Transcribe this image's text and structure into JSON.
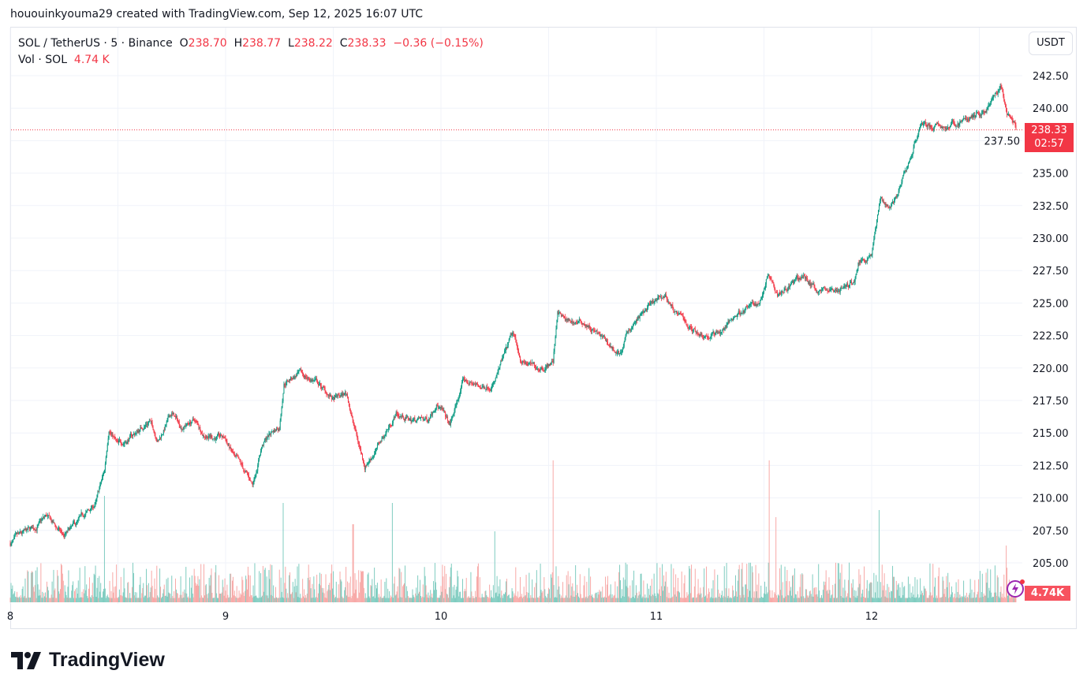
{
  "credit": "hououinkyouma29 created with TradingView.com, Sep 12, 2025 16:07 UTC",
  "legend": {
    "symbol": "SOL / TetherUS · 5 · Binance",
    "o_label": "O",
    "o": "238.70",
    "h_label": "H",
    "h": "238.77",
    "l_label": "L",
    "l": "238.22",
    "c_label": "C",
    "c": "238.33",
    "change": "−0.36 (−0.15%)",
    "vol_label": "Vol · SOL",
    "vol": "4.74 K"
  },
  "currency_button": "USDT",
  "last_price_label": "238.33",
  "countdown": "02:57",
  "volume_label": "4.74K",
  "brand": "TradingView",
  "colors": {
    "up": "#089981",
    "down": "#f23645",
    "vol_up": "#7fccc0",
    "vol_down": "#f7a9a7",
    "grid": "#f0f3fa"
  },
  "chart_data": {
    "type": "candlestick",
    "interval": "5 minutes",
    "ylim": [
      204,
      244
    ],
    "y_ticks": [
      "205.00",
      "207.50",
      "210.00",
      "212.50",
      "215.00",
      "217.50",
      "220.00",
      "222.50",
      "225.00",
      "227.50",
      "230.00",
      "232.50",
      "235.00",
      "237.50",
      "240.00",
      "242.50"
    ],
    "x_ticks": [
      "8",
      "9",
      "10",
      "11",
      "12"
    ],
    "grid": true,
    "last_price": 238.33,
    "approx_path": [
      [
        "09-08 00:00",
        206.5
      ],
      [
        "09-08 02:30",
        207.5
      ],
      [
        "09-08 04:00",
        208.5
      ],
      [
        "09-08 06:00",
        207.0
      ],
      [
        "09-08 07:30",
        208.0
      ],
      [
        "09-08 09:30",
        209.5
      ],
      [
        "09-08 10:30",
        212.0
      ],
      [
        "09-08 11:00",
        215.5
      ],
      [
        "09-08 12:00",
        214.0
      ],
      [
        "09-08 14:00",
        215.0
      ],
      [
        "09-08 15:30",
        216.0
      ],
      [
        "09-08 16:30",
        214.5
      ],
      [
        "09-08 18:00",
        216.5
      ],
      [
        "09-08 19:00",
        215.5
      ],
      [
        "09-08 20:30",
        216.0
      ],
      [
        "09-08 21:30",
        215.0
      ],
      [
        "09-09 00:00",
        214.5
      ],
      [
        "09-09 01:00",
        213.0
      ],
      [
        "09-09 03:00",
        211.0
      ],
      [
        "09-09 04:00",
        214.0
      ],
      [
        "09-09 05:00",
        215.0
      ],
      [
        "09-09 06:00",
        215.5
      ],
      [
        "09-09 06:30",
        219.0
      ],
      [
        "09-09 08:00",
        219.5
      ],
      [
        "09-09 10:00",
        219.0
      ],
      [
        "09-09 12:00",
        217.5
      ],
      [
        "09-09 13:30",
        218.0
      ],
      [
        "09-09 14:30",
        215.0
      ],
      [
        "09-09 15:30",
        212.5
      ],
      [
        "09-09 17:00",
        214.0
      ],
      [
        "09-09 19:00",
        216.5
      ],
      [
        "09-09 20:30",
        216.0
      ],
      [
        "09-09 22:30",
        216.0
      ],
      [
        "09-09 23:30",
        217.5
      ],
      [
        "09-10 01:00",
        215.5
      ],
      [
        "09-10 02:30",
        219.0
      ],
      [
        "09-10 04:30",
        218.5
      ],
      [
        "09-10 06:00",
        219.0
      ],
      [
        "09-10 08:00",
        222.5
      ],
      [
        "09-10 09:00",
        220.5
      ],
      [
        "09-10 10:30",
        220.0
      ],
      [
        "09-10 12:30",
        220.5
      ],
      [
        "09-10 13:00",
        224.5
      ],
      [
        "09-10 14:00",
        223.5
      ],
      [
        "09-10 16:00",
        223.5
      ],
      [
        "09-10 17:30",
        222.5
      ],
      [
        "09-10 20:00",
        221.0
      ],
      [
        "09-10 21:00",
        223.0
      ],
      [
        "09-10 23:00",
        224.5
      ],
      [
        "09-11 01:00",
        225.5
      ],
      [
        "09-11 02:30",
        224.0
      ],
      [
        "09-11 04:00",
        223.0
      ],
      [
        "09-11 06:00",
        222.5
      ],
      [
        "09-11 07:30",
        223.0
      ],
      [
        "09-11 09:30",
        224.5
      ],
      [
        "09-11 11:30",
        225.0
      ],
      [
        "09-11 12:30",
        227.5
      ],
      [
        "09-11 13:30",
        226.0
      ],
      [
        "09-11 15:00",
        226.5
      ],
      [
        "09-11 16:30",
        227.0
      ],
      [
        "09-11 18:00",
        226.0
      ],
      [
        "09-11 20:00",
        226.0
      ],
      [
        "09-11 22:00",
        226.5
      ],
      [
        "09-11 22:30",
        228.0
      ],
      [
        "09-12 00:00",
        229.0
      ],
      [
        "09-12 01:00",
        233.0
      ],
      [
        "09-12 02:00",
        232.5
      ],
      [
        "09-12 03:00",
        233.5
      ],
      [
        "09-12 04:30",
        236.5
      ],
      [
        "09-12 05:30",
        239.0
      ],
      [
        "09-12 07:00",
        238.5
      ],
      [
        "09-12 08:30",
        238.5
      ],
      [
        "09-12 10:00",
        239.0
      ],
      [
        "09-12 12:00",
        239.5
      ],
      [
        "09-12 13:00",
        240.0
      ],
      [
        "09-12 14:30",
        241.5
      ],
      [
        "09-12 15:00",
        239.5
      ],
      [
        "09-12 16:05",
        238.33
      ]
    ]
  }
}
